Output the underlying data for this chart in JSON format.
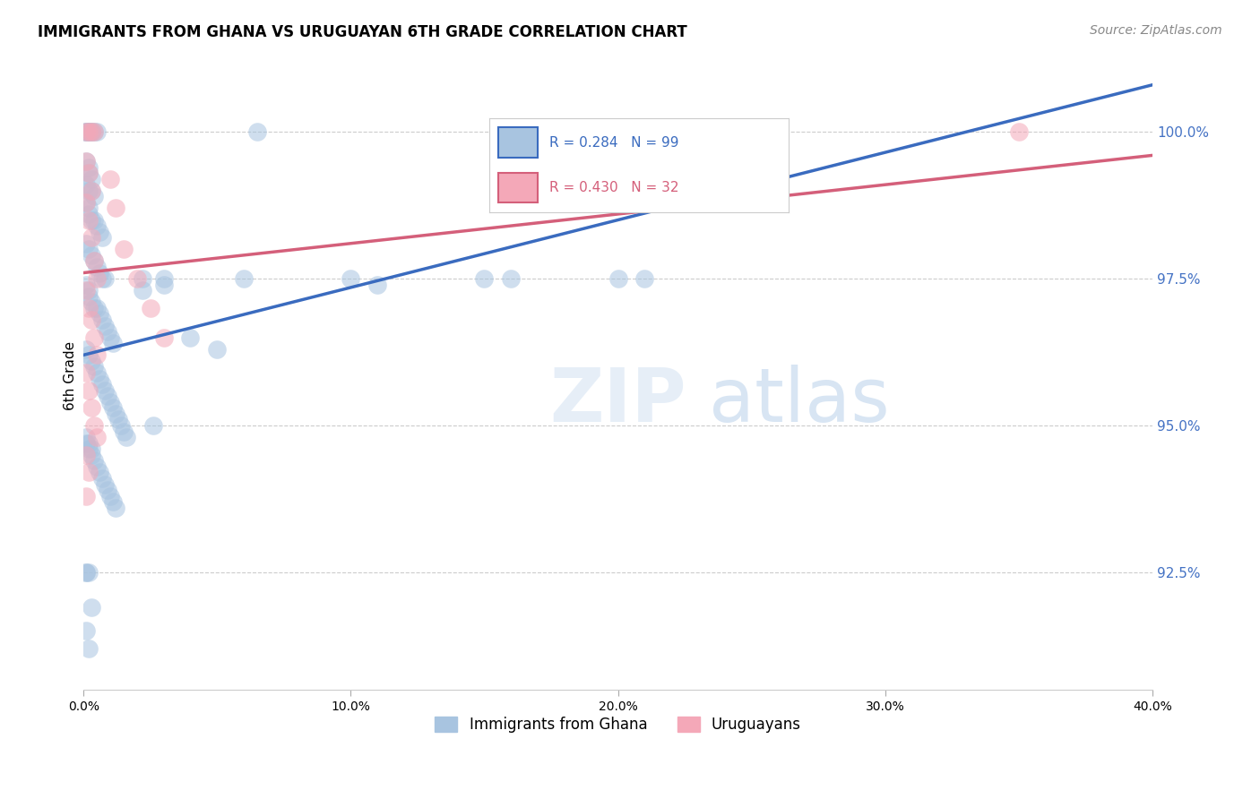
{
  "title": "IMMIGRANTS FROM GHANA VS URUGUAYAN 6TH GRADE CORRELATION CHART",
  "source": "Source: ZipAtlas.com",
  "ylabel": "6th Grade",
  "yticks": [
    92.5,
    95.0,
    97.5,
    100.0
  ],
  "xlim": [
    0.0,
    0.4
  ],
  "ylim": [
    90.5,
    101.2
  ],
  "ghana_color": "#a8c4e0",
  "uruguay_color": "#f4a8b8",
  "ghana_line_color": "#3a6bbf",
  "uruguay_line_color": "#d45f7a",
  "ghana_R": 0.284,
  "ghana_N": 99,
  "uruguay_R": 0.43,
  "uruguay_N": 32,
  "ghana_line": {
    "x0": 0.0,
    "y0": 96.2,
    "x1": 0.4,
    "y1": 100.8
  },
  "uruguay_line": {
    "x0": 0.0,
    "y0": 97.6,
    "x1": 0.4,
    "y1": 99.6
  },
  "ghana_points_x": [
    0.001,
    0.001,
    0.001,
    0.002,
    0.002,
    0.003,
    0.003,
    0.004,
    0.005,
    0.001,
    0.002,
    0.002,
    0.003,
    0.001,
    0.002,
    0.003,
    0.004,
    0.001,
    0.002,
    0.002,
    0.003,
    0.004,
    0.005,
    0.006,
    0.007,
    0.001,
    0.002,
    0.003,
    0.004,
    0.005,
    0.006,
    0.007,
    0.008,
    0.001,
    0.002,
    0.002,
    0.003,
    0.004,
    0.005,
    0.006,
    0.007,
    0.008,
    0.009,
    0.01,
    0.011,
    0.001,
    0.002,
    0.003,
    0.004,
    0.005,
    0.006,
    0.007,
    0.008,
    0.009,
    0.01,
    0.011,
    0.012,
    0.013,
    0.014,
    0.015,
    0.016,
    0.001,
    0.002,
    0.003,
    0.004,
    0.005,
    0.006,
    0.007,
    0.008,
    0.009,
    0.01,
    0.011,
    0.012,
    0.001,
    0.002,
    0.003,
    0.001,
    0.001,
    0.002,
    0.003,
    0.001,
    0.002,
    0.03,
    0.03,
    0.022,
    0.022,
    0.06,
    0.065,
    0.1,
    0.11,
    0.15,
    0.16,
    0.2,
    0.21,
    0.026,
    0.04,
    0.05
  ],
  "ghana_points_y": [
    100.0,
    100.0,
    100.0,
    100.0,
    100.0,
    100.0,
    100.0,
    100.0,
    100.0,
    99.5,
    99.4,
    99.3,
    99.2,
    99.1,
    99.0,
    99.0,
    98.9,
    98.8,
    98.7,
    98.6,
    98.5,
    98.5,
    98.4,
    98.3,
    98.2,
    98.1,
    98.0,
    97.9,
    97.8,
    97.7,
    97.6,
    97.5,
    97.5,
    97.4,
    97.3,
    97.2,
    97.1,
    97.0,
    97.0,
    96.9,
    96.8,
    96.7,
    96.6,
    96.5,
    96.4,
    96.3,
    96.2,
    96.1,
    96.0,
    95.9,
    95.8,
    95.7,
    95.6,
    95.5,
    95.4,
    95.3,
    95.2,
    95.1,
    95.0,
    94.9,
    94.8,
    94.7,
    94.6,
    94.5,
    94.4,
    94.3,
    94.2,
    94.1,
    94.0,
    93.9,
    93.8,
    93.7,
    93.6,
    94.8,
    94.7,
    94.6,
    92.5,
    92.5,
    92.5,
    91.9,
    91.5,
    91.2,
    97.5,
    97.4,
    97.5,
    97.3,
    97.5,
    100.0,
    97.5,
    97.4,
    97.5,
    97.5,
    97.5,
    97.5,
    95.0,
    96.5,
    96.3
  ],
  "uruguay_points_x": [
    0.001,
    0.002,
    0.003,
    0.004,
    0.001,
    0.002,
    0.003,
    0.001,
    0.002,
    0.003,
    0.004,
    0.005,
    0.001,
    0.002,
    0.003,
    0.004,
    0.005,
    0.001,
    0.002,
    0.003,
    0.004,
    0.005,
    0.001,
    0.002,
    0.01,
    0.012,
    0.015,
    0.02,
    0.025,
    0.03,
    0.001,
    0.35
  ],
  "uruguay_points_y": [
    100.0,
    100.0,
    100.0,
    100.0,
    99.5,
    99.3,
    99.0,
    98.8,
    98.5,
    98.2,
    97.8,
    97.5,
    97.3,
    97.0,
    96.8,
    96.5,
    96.2,
    95.9,
    95.6,
    95.3,
    95.0,
    94.8,
    94.5,
    94.2,
    99.2,
    98.7,
    98.0,
    97.5,
    97.0,
    96.5,
    93.8,
    100.0
  ]
}
